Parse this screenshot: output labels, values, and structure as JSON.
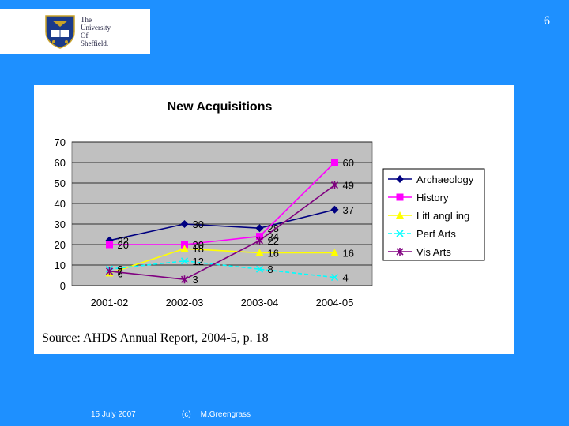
{
  "header": {
    "logo_lines": [
      "The",
      "University",
      "Of",
      "Sheffield."
    ],
    "page_number": "6"
  },
  "chart_data": {
    "type": "line",
    "title": "New Acquisitions",
    "categories": [
      "2001-02",
      "2002-03",
      "2003-04",
      "2004-05"
    ],
    "ylim": [
      0,
      70
    ],
    "yticks": [
      0,
      10,
      20,
      30,
      40,
      50,
      60,
      70
    ],
    "xlabel": "",
    "ylabel": "",
    "grid": true,
    "legend": "right",
    "series": [
      {
        "name": "Archaeology",
        "values": [
          22,
          30,
          28,
          37
        ],
        "color": "#000080",
        "marker": "diamond"
      },
      {
        "name": "History",
        "values": [
          20,
          20,
          24,
          60
        ],
        "color": "#ff00ff",
        "marker": "square"
      },
      {
        "name": "LitLangLing",
        "values": [
          6,
          18,
          16,
          16
        ],
        "color": "#ffff00",
        "marker": "triangle"
      },
      {
        "name": "Perf Arts",
        "values": [
          8,
          12,
          8,
          4
        ],
        "color": "#00ffff",
        "marker": "x"
      },
      {
        "name": "Vis Arts",
        "values": [
          7,
          3,
          22,
          49
        ],
        "color": "#800080",
        "marker": "star"
      }
    ],
    "labels_shown": [
      [
        22,
        30,
        28,
        37
      ],
      [
        20,
        20,
        24,
        60
      ],
      [
        6,
        18,
        16,
        16
      ],
      [
        8,
        12,
        8,
        4
      ],
      [
        7,
        3,
        22,
        49
      ]
    ]
  },
  "source": "Source:  AHDS Annual Report, 2004-5, p. 18",
  "footer": {
    "date": "15 July 2007",
    "copyright": "(c)",
    "author": "M.Greengrass"
  }
}
